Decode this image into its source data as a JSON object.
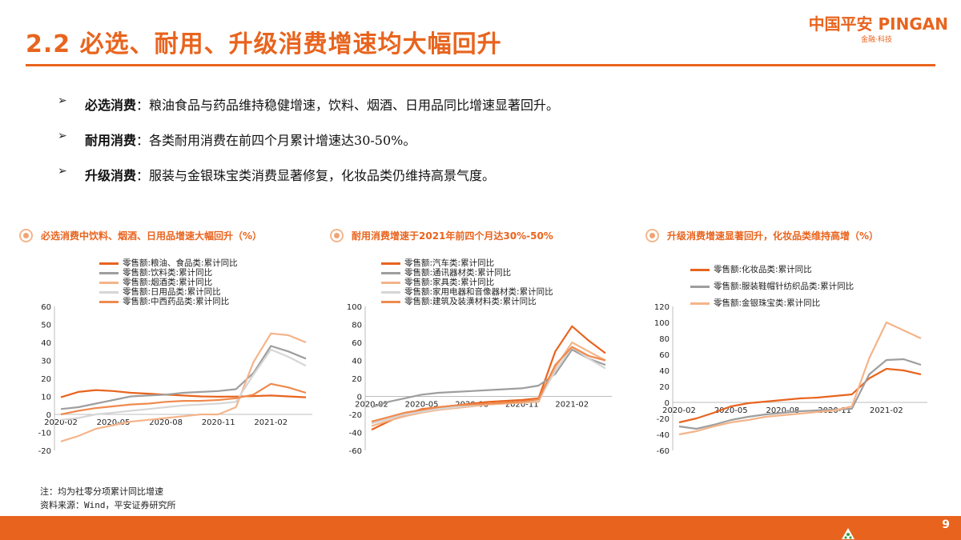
{
  "header": {
    "title": "2.2 必选、耐用、升级消费增速均大幅回升",
    "logo_main": "中国平安 PINGAN",
    "logo_sub": "金融·科技",
    "accent_color": "#e8641e"
  },
  "bullets": [
    {
      "lead": "必选消费",
      "text": "：粮油食品与药品维持稳健增速，饮料、烟酒、日用品同比增速显著回升。"
    },
    {
      "lead": "耐用消费",
      "text": "：各类耐用消费在前四个月累计增速达30-50%。"
    },
    {
      "lead": "升级消费",
      "text": "：服装与金银珠宝类消费显著修复，化妆品类仍维持高景气度。"
    }
  ],
  "footnote": {
    "note": "注：均为社零分项累计同比增速",
    "source": "资料来源：Wind，平安证券研究所"
  },
  "page_number": "9",
  "chart_data": [
    {
      "type": "line",
      "title": "必选消费中饮料、烟酒、日用品增速大幅回升（%）",
      "x_ticks": [
        "2020-02",
        "2020-05",
        "2020-08",
        "2020-11",
        "2021-02"
      ],
      "x": [
        "2020-02",
        "2020-03",
        "2020-04",
        "2020-05",
        "2020-06",
        "2020-07",
        "2020-08",
        "2020-09",
        "2020-10",
        "2020-11",
        "2020-12",
        "2021-01",
        "2021-02",
        "2021-03",
        "2021-04"
      ],
      "ylim": [
        -20,
        60
      ],
      "y_ticks": [
        -20,
        -10,
        0,
        10,
        20,
        30,
        40,
        50,
        60
      ],
      "series": [
        {
          "name": "零售额:粮油、食品类:累计同比",
          "color": "#e8641e",
          "values": [
            9.5,
            12.5,
            13.5,
            13,
            12,
            11.5,
            11,
            10.5,
            10,
            9.8,
            9.9,
            10.2,
            10.5,
            10,
            9.5
          ]
        },
        {
          "name": "零售额:饮料类:累计同比",
          "color": "#9e9e9e",
          "values": [
            3,
            4,
            6,
            8,
            10,
            10.5,
            11,
            12,
            12.5,
            13,
            14,
            23,
            38,
            35,
            31
          ]
        },
        {
          "name": "零售额:烟酒类:累计同比",
          "color": "#f4b48a",
          "values": [
            -15,
            -12,
            -8,
            -6,
            -4,
            -3,
            -2,
            -1,
            0,
            0,
            4,
            29,
            45,
            44,
            40
          ]
        },
        {
          "name": "零售额:日用品类:累计同比",
          "color": "#d6d6d6",
          "values": [
            -3,
            -2,
            0,
            1,
            2,
            3,
            4,
            5,
            5.5,
            6,
            7,
            22,
            36,
            32,
            27
          ]
        },
        {
          "name": "零售额:中西药品类:累计同比",
          "color": "#ef8a4e",
          "values": [
            0,
            2,
            3.5,
            4.5,
            5.5,
            6,
            7,
            7.5,
            7.5,
            8,
            9,
            11,
            17,
            15,
            12
          ]
        }
      ]
    },
    {
      "type": "line",
      "title": "耐用消费增速于2021年前四个月达30%-50%",
      "x_ticks": [
        "2020-02",
        "2020-05",
        "2020-08",
        "2020-11",
        "2021-02"
      ],
      "x": [
        "2020-02",
        "2020-03",
        "2020-04",
        "2020-05",
        "2020-06",
        "2020-07",
        "2020-08",
        "2020-09",
        "2020-10",
        "2020-11",
        "2020-12",
        "2021-01",
        "2021-02",
        "2021-03",
        "2021-04"
      ],
      "ylim": [
        -60,
        100
      ],
      "y_ticks": [
        -60,
        -40,
        -20,
        0,
        20,
        40,
        60,
        80,
        100
      ],
      "series": [
        {
          "name": "零售额:汽车类:累计同比",
          "color": "#e8641e",
          "values": [
            -37,
            -28,
            -20,
            -14,
            -12,
            -10,
            -8,
            -6,
            -5,
            -4,
            -2,
            50,
            78,
            62,
            48
          ]
        },
        {
          "name": "零售额:通讯器材类:累计同比",
          "color": "#9e9e9e",
          "values": [
            -12,
            -6,
            -2,
            2,
            4,
            5,
            6,
            7,
            8,
            9,
            12,
            25,
            52,
            42,
            35
          ]
        },
        {
          "name": "零售额:家具类:累计同比",
          "color": "#f4b48a",
          "values": [
            -33,
            -27,
            -22,
            -18,
            -15,
            -13,
            -11,
            -9,
            -8,
            -7,
            -6,
            32,
            60,
            50,
            40
          ]
        },
        {
          "name": "零售额:家用电器和音像器材类:累计同比",
          "color": "#d6d6d6",
          "values": [
            -30,
            -25,
            -20,
            -17,
            -14,
            -12,
            -10,
            -8,
            -7,
            -6,
            -4,
            28,
            55,
            42,
            31
          ]
        },
        {
          "name": "零售额:建筑及装潢材料类:累计同比",
          "color": "#ef8a4e",
          "values": [
            -28,
            -23,
            -18,
            -15,
            -12,
            -10,
            -9,
            -8,
            -7,
            -6,
            -3,
            35,
            55,
            45,
            40
          ]
        }
      ]
    },
    {
      "type": "line",
      "title": "升级消费增速显著回升，化妆品类维持高增（%）",
      "x_ticks": [
        "2020-02",
        "2020-05",
        "2020-08",
        "2020-11",
        "2021-02"
      ],
      "x": [
        "2020-02",
        "2020-03",
        "2020-04",
        "2020-05",
        "2020-06",
        "2020-07",
        "2020-08",
        "2020-09",
        "2020-10",
        "2020-11",
        "2020-12",
        "2021-01",
        "2021-02",
        "2021-03",
        "2021-04"
      ],
      "ylim": [
        -60,
        120
      ],
      "y_ticks": [
        -60,
        -40,
        -20,
        0,
        20,
        40,
        60,
        80,
        100,
        120
      ],
      "series": [
        {
          "name": "零售额:化妆品类:累计同比",
          "color": "#e8641e",
          "values": [
            -25,
            -20,
            -13,
            -5,
            -1,
            1,
            3,
            5,
            6,
            8,
            10,
            30,
            42,
            40,
            35
          ]
        },
        {
          "name": "零售额:服装鞋帽针纺织品类:累计同比",
          "color": "#9e9e9e",
          "values": [
            -30,
            -33,
            -28,
            -22,
            -18,
            -15,
            -13,
            -11,
            -10,
            -9,
            -8,
            35,
            53,
            54,
            47
          ]
        },
        {
          "name": "零售额:金银珠宝类:累计同比",
          "color": "#f4b48a",
          "values": [
            -40,
            -36,
            -30,
            -25,
            -22,
            -18,
            -16,
            -14,
            -12,
            -10,
            -5,
            55,
            100,
            90,
            80
          ]
        }
      ]
    }
  ]
}
